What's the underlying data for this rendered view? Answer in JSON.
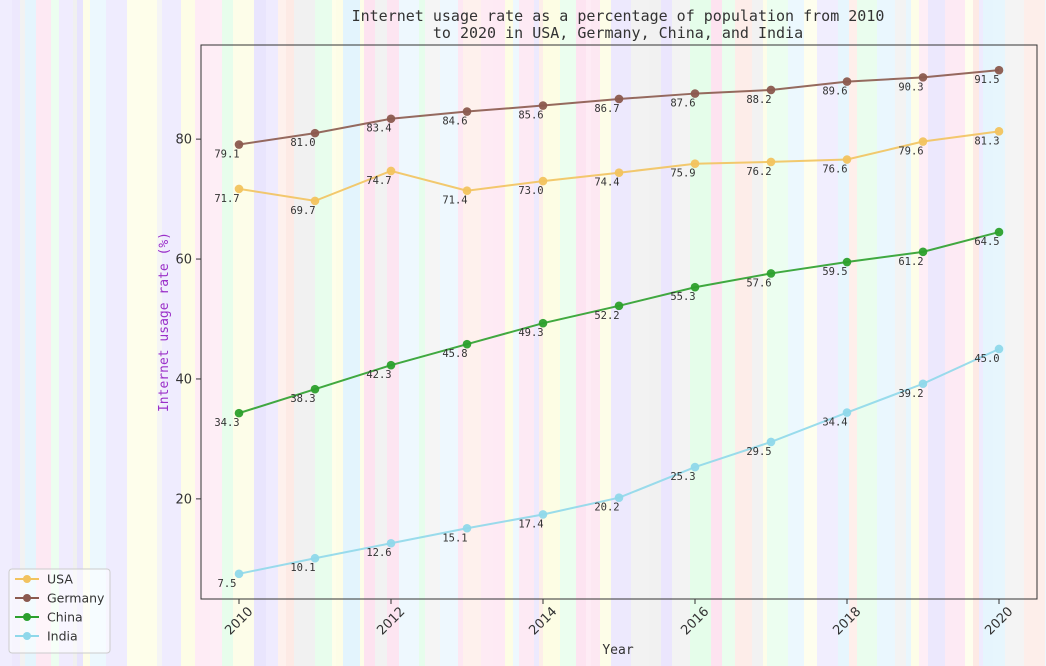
{
  "chart_data": {
    "type": "line",
    "title_lines": [
      "Internet usage rate as a percentage of population from 2010",
      "to 2020 in USA, Germany, China, and India"
    ],
    "xlabel": "Year",
    "ylabel": "Internet usage rate (%)",
    "x": [
      2010,
      2011,
      2012,
      2013,
      2014,
      2015,
      2016,
      2017,
      2018,
      2019,
      2020
    ],
    "x_ticks": [
      2010,
      2012,
      2014,
      2016,
      2018,
      2020
    ],
    "x_tick_labels": [
      "2010",
      "2012",
      "2014",
      "2016",
      "2018",
      "2020"
    ],
    "y_ticks": [
      20,
      40,
      60,
      80
    ],
    "y_tick_labels": [
      "20",
      "40",
      "60",
      "80"
    ],
    "xlim": [
      2009.5,
      2020.5
    ],
    "ylim": [
      3.3,
      95.7
    ],
    "grid": false,
    "legend_position": "bottom-left",
    "series": [
      {
        "name": "USA",
        "color": "#f2c35e",
        "values": [
          71.7,
          69.7,
          74.7,
          71.4,
          73.0,
          74.4,
          75.9,
          76.2,
          76.6,
          79.6,
          81.3
        ]
      },
      {
        "name": "Germany",
        "color": "#8b5a4e",
        "values": [
          79.1,
          81.0,
          83.4,
          84.6,
          85.6,
          86.7,
          87.6,
          88.2,
          89.6,
          90.3,
          91.5
        ]
      },
      {
        "name": "China",
        "color": "#2ca02c",
        "values": [
          34.3,
          38.3,
          42.3,
          45.8,
          49.3,
          52.2,
          55.3,
          57.6,
          59.5,
          61.2,
          64.5
        ]
      },
      {
        "name": "India",
        "color": "#8fd8ea",
        "values": [
          7.5,
          10.1,
          12.6,
          15.1,
          17.4,
          20.2,
          25.3,
          29.5,
          34.4,
          39.2,
          45.0
        ]
      }
    ],
    "ylabel_color": "#9b30c8",
    "background_stripe_colors": [
      "#fde3f0",
      "#e3f4fd",
      "#fdfde3",
      "#e8e3fd",
      "#e3fde9",
      "#fde9e3",
      "#f0f0f0"
    ]
  }
}
